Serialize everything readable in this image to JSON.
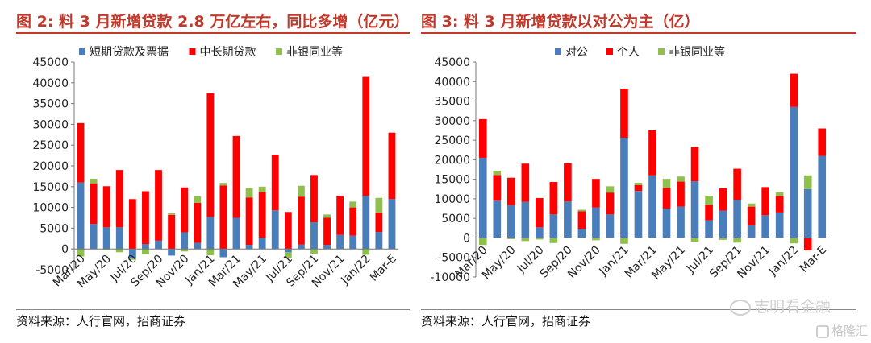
{
  "figures": [
    {
      "title": "图 2: 料 3 月新增贷款 2.8 万亿左右，同比多增（亿元）",
      "source": "资料来源：人行官网，招商证券"
    },
    {
      "title": "图 3: 料 3 月新增贷款以对公为主（亿）",
      "source": "资料来源：人行官网，招商证券"
    }
  ],
  "watermark": {
    "text1": "志明看金融",
    "text2": "格隆汇"
  },
  "chart_data": [
    {
      "type": "bar",
      "stacked": true,
      "categories": [
        "Mar/20",
        "Apr/20",
        "May/20",
        "Jun/20",
        "Jul/20",
        "Aug/20",
        "Sep/20",
        "Oct/20",
        "Nov/20",
        "Dec/20",
        "Jan/21",
        "Feb/21",
        "Mar/21",
        "Apr/21",
        "May/21",
        "Jun/21",
        "Jul/21",
        "Aug/21",
        "Sep/21",
        "Oct/21",
        "Nov/21",
        "Dec/21",
        "Jan/22",
        "Feb/22",
        "Mar-E"
      ],
      "tick_labels": [
        "Mar/20",
        "May/20",
        "Jul/20",
        "Sep/20",
        "Nov/20",
        "Jan/21",
        "Mar/21",
        "May/21",
        "Jul/21",
        "Sep/21",
        "Nov/21",
        "Jan/22",
        "Mar-E"
      ],
      "ylim": [
        -5000,
        45000
      ],
      "yticks": [
        -5000,
        0,
        5000,
        10000,
        15000,
        20000,
        25000,
        30000,
        35000,
        40000,
        45000
      ],
      "legend_position": "top",
      "series": [
        {
          "name": "短期贷款及票据",
          "color": "#4a7ebb",
          "values": [
            16000,
            6000,
            5200,
            5200,
            -2200,
            1200,
            2000,
            -1600,
            4000,
            1500,
            7700,
            -2000,
            7500,
            1000,
            2700,
            9300,
            -800,
            1100,
            6400,
            1000,
            3400,
            3200,
            12800,
            4100,
            12000
          ]
        },
        {
          "name": "中长期贷款",
          "color": "#ff0000",
          "values": [
            14300,
            9800,
            9900,
            13800,
            12000,
            12700,
            17000,
            8200,
            10800,
            9600,
            29800,
            15300,
            19700,
            11400,
            11000,
            13400,
            8900,
            11500,
            11400,
            6500,
            9400,
            6800,
            28600,
            4700,
            16000
          ]
        },
        {
          "name": "非银同业等",
          "color": "#8fbf4f",
          "values": [
            -1800,
            1100,
            -300,
            -800,
            -400,
            -1300,
            0,
            400,
            -600,
            1600,
            -1500,
            600,
            0,
            2300,
            1300,
            0,
            -1400,
            2600,
            -1200,
            800,
            0,
            1400,
            -1400,
            3500,
            0
          ]
        }
      ]
    },
    {
      "type": "bar",
      "stacked": true,
      "categories": [
        "Mar/20",
        "Apr/20",
        "May/20",
        "Jun/20",
        "Jul/20",
        "Aug/20",
        "Sep/20",
        "Oct/20",
        "Nov/20",
        "Dec/20",
        "Jan/21",
        "Feb/21",
        "Mar/21",
        "Apr/21",
        "May/21",
        "Jun/21",
        "Jul/21",
        "Aug/21",
        "Sep/21",
        "Oct/21",
        "Nov/21",
        "Dec/21",
        "Jan/22",
        "Feb/22",
        "Mar-E"
      ],
      "tick_labels": [
        "Mar/20",
        "May/20",
        "Jul/20",
        "Sep/20",
        "Nov/20",
        "Jan/21",
        "Mar/21",
        "May/21",
        "Jul/21",
        "Sep/21",
        "Nov/21",
        "Jan/22",
        "Mar-E"
      ],
      "ylim": [
        -10000,
        45000
      ],
      "yticks": [
        -10000,
        -5000,
        0,
        5000,
        10000,
        15000,
        20000,
        25000,
        30000,
        35000,
        40000,
        45000
      ],
      "legend_position": "top",
      "series": [
        {
          "name": "对公",
          "color": "#4a7ebb",
          "values": [
            20500,
            9500,
            8400,
            9200,
            2700,
            6000,
            9300,
            2300,
            7800,
            6000,
            25600,
            12000,
            16000,
            7500,
            8000,
            14500,
            4500,
            7000,
            9700,
            3200,
            5800,
            6500,
            33500,
            12500,
            21000
          ]
        },
        {
          "name": "个人",
          "color": "#ff0000",
          "values": [
            9900,
            6600,
            7000,
            9800,
            7500,
            8300,
            9800,
            4500,
            7300,
            5600,
            12600,
            1500,
            11500,
            5300,
            6400,
            8800,
            4000,
            5700,
            8000,
            4800,
            7200,
            4200,
            8500,
            -3200,
            7000
          ]
        },
        {
          "name": "非银同业等",
          "color": "#8fbf4f",
          "values": [
            -1800,
            1100,
            -300,
            -800,
            -400,
            -1300,
            0,
            400,
            -600,
            1600,
            -1500,
            600,
            0,
            2300,
            1300,
            -1000,
            2300,
            -500,
            -1200,
            800,
            0,
            1000,
            -1400,
            3500,
            0
          ]
        }
      ]
    }
  ]
}
